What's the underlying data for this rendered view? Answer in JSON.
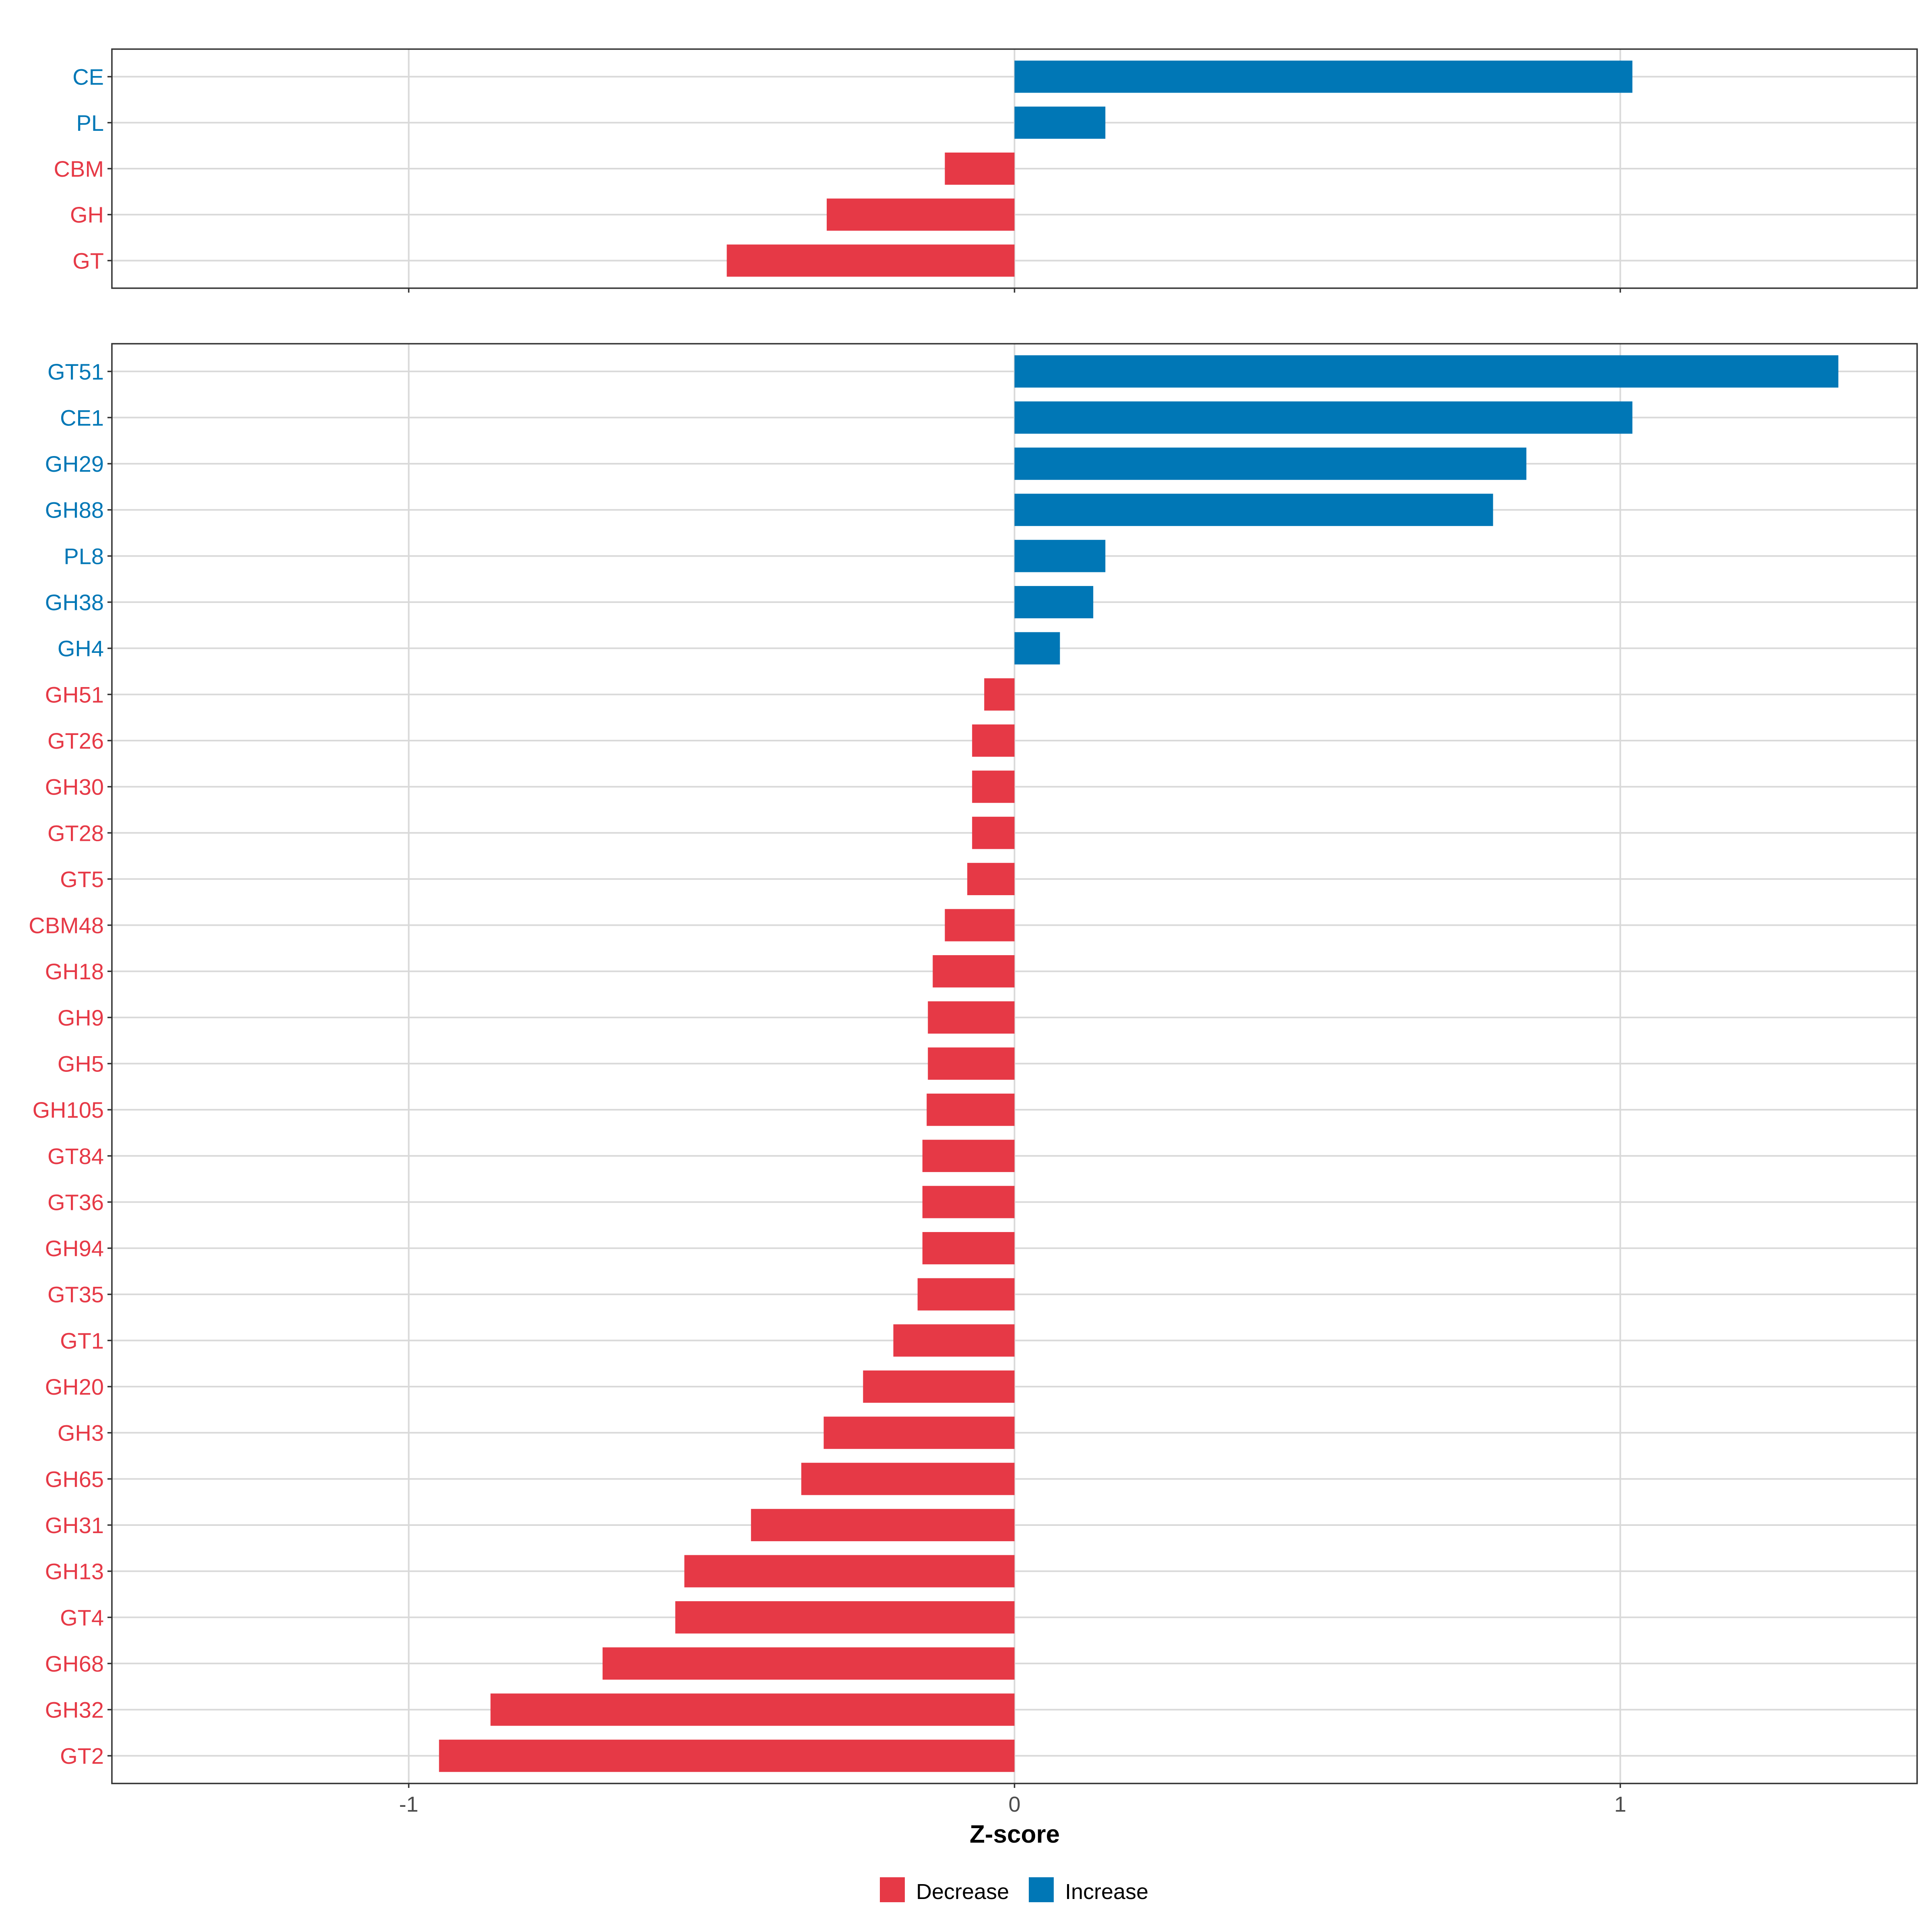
{
  "colors": {
    "decrease": "#E63946",
    "increase": "#0077B6",
    "grid": "#D9D9D9",
    "axis": "#333333",
    "text": "#000000",
    "tick_text": "#4D4D4D"
  },
  "chart_data": [
    {
      "type": "bar",
      "orientation": "horizontal",
      "panel": "top",
      "categories": [
        "CE",
        "PL",
        "CBM",
        "GH",
        "GT"
      ],
      "values": [
        1.02,
        0.15,
        -0.115,
        -0.31,
        -0.475
      ],
      "direction": [
        "Increase",
        "Increase",
        "Decrease",
        "Decrease",
        "Decrease"
      ],
      "xlim": [
        -1.49,
        1.49
      ],
      "grid": true
    },
    {
      "type": "bar",
      "orientation": "horizontal",
      "panel": "bottom",
      "categories": [
        "GT51",
        "CE1",
        "GH29",
        "GH88",
        "PL8",
        "GH38",
        "GH4",
        "GH51",
        "GT26",
        "GH30",
        "GT28",
        "GT5",
        "CBM48",
        "GH18",
        "GH9",
        "GH5",
        "GH105",
        "GT84",
        "GT36",
        "GH94",
        "GT35",
        "GT1",
        "GH20",
        "GH3",
        "GH65",
        "GH31",
        "GH13",
        "GT4",
        "GH68",
        "GH32",
        "GT2"
      ],
      "values": [
        1.36,
        1.02,
        0.845,
        0.79,
        0.15,
        0.13,
        0.075,
        -0.05,
        -0.07,
        -0.07,
        -0.07,
        -0.078,
        -0.115,
        -0.135,
        -0.143,
        -0.143,
        -0.145,
        -0.152,
        -0.152,
        -0.152,
        -0.16,
        -0.2,
        -0.25,
        -0.315,
        -0.352,
        -0.435,
        -0.545,
        -0.56,
        -0.68,
        -0.865,
        -0.95
      ],
      "direction": [
        "Increase",
        "Increase",
        "Increase",
        "Increase",
        "Increase",
        "Increase",
        "Increase",
        "Decrease",
        "Decrease",
        "Decrease",
        "Decrease",
        "Decrease",
        "Decrease",
        "Decrease",
        "Decrease",
        "Decrease",
        "Decrease",
        "Decrease",
        "Decrease",
        "Decrease",
        "Decrease",
        "Decrease",
        "Decrease",
        "Decrease",
        "Decrease",
        "Decrease",
        "Decrease",
        "Decrease",
        "Decrease",
        "Decrease",
        "Decrease"
      ],
      "xlim": [
        -1.49,
        1.49
      ],
      "xticks": [
        -1,
        0,
        1
      ],
      "xtick_labels": [
        "-1",
        "0",
        "1"
      ],
      "xlabel": "Z-score",
      "grid": true
    }
  ],
  "legend": {
    "position": "bottom",
    "items": [
      {
        "label": "Decrease",
        "key": "decrease"
      },
      {
        "label": "Increase",
        "key": "increase"
      }
    ]
  }
}
